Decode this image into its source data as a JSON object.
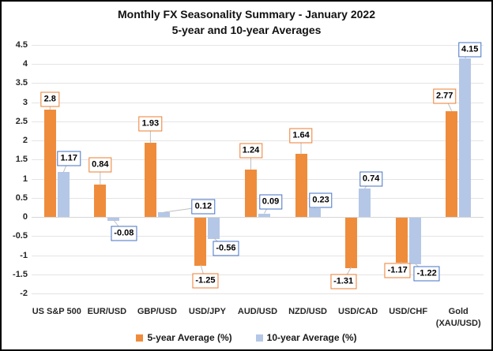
{
  "title": {
    "line1": "Monthly FX Seasonality Summary - January 2022",
    "line2": "5-year and 10-year Averages"
  },
  "chart_data": {
    "type": "bar",
    "categories": [
      "US S&P 500",
      "EUR/USD",
      "GBP/USD",
      "USD/JPY",
      "AUD/USD",
      "NZD/USD",
      "USD/CAD",
      "USD/CHF",
      "Gold (XAU/USD)"
    ],
    "series": [
      {
        "name": "5-year Average (%)",
        "bar_color": "#EF8C3C",
        "label_border_color": "#ED7D31",
        "values": [
          2.8,
          0.84,
          1.93,
          -1.25,
          1.24,
          1.64,
          -1.31,
          -1.17,
          2.77
        ]
      },
      {
        "name": "10-year Average (%)",
        "bar_color": "#B4C7E7",
        "label_border_color": "#4472C4",
        "values": [
          1.17,
          -0.08,
          0.12,
          -0.56,
          0.09,
          0.23,
          0.74,
          -1.22,
          4.15
        ]
      }
    ],
    "y_ticks": [
      4.5,
      4,
      3.5,
      3,
      2.5,
      2,
      1.5,
      1,
      0.5,
      0,
      -0.5,
      -1,
      -1.5,
      -2
    ],
    "ylim": [
      -2.28,
      4.5
    ],
    "grid": true,
    "data_labels": true,
    "legend_position": "bottom",
    "gridline_color": "#E4E4E4",
    "zero_line_color": "#D6D6D6",
    "leader_line_color": "#BFBFBF",
    "label_offsets": {
      "series0": [
        [
          0,
          -13
        ],
        [
          0,
          -25
        ],
        [
          0,
          -24
        ],
        [
          6,
          20
        ],
        [
          0,
          -24
        ],
        [
          0,
          -23
        ],
        [
          -10,
          18
        ],
        [
          -5,
          11
        ],
        [
          -9,
          -19
        ]
      ],
      "series1": [
        [
          7,
          -17
        ],
        [
          13,
          17
        ],
        [
          50,
          -7
        ],
        [
          15,
          13
        ],
        [
          8,
          -15
        ],
        [
          8,
          -10
        ],
        [
          8,
          -12
        ],
        [
          15,
          13
        ],
        [
          6,
          -11
        ]
      ]
    }
  }
}
